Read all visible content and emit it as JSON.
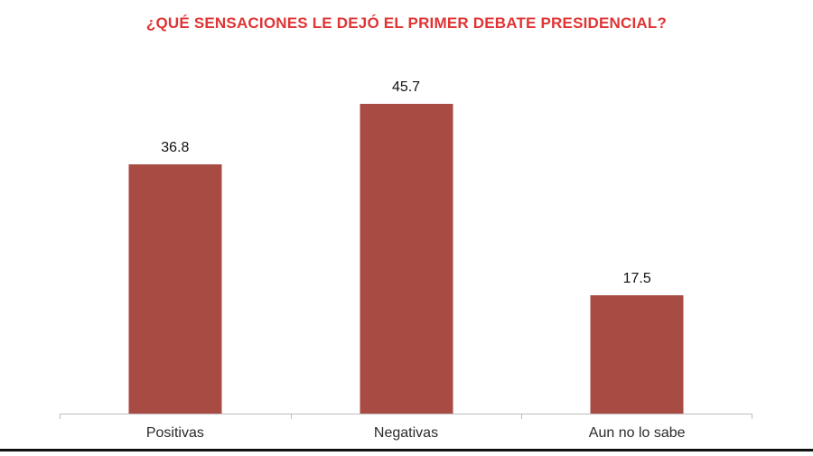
{
  "chart_data": {
    "type": "bar",
    "title": "¿QUÉ SENSACIONES LE DEJÓ EL PRIMER DEBATE PRESIDENCIAL?",
    "categories": [
      "Positivas",
      "Negativas",
      "Aun no lo sabe"
    ],
    "values": [
      36.8,
      45.7,
      17.5
    ],
    "value_labels": [
      "36.8",
      "45.7",
      "17.5"
    ],
    "xlabel": "",
    "ylabel": "",
    "ylim": [
      0,
      51.7
    ],
    "grid": false,
    "legend": false,
    "title_color": "#e03434",
    "bar_color": "#a84b42",
    "value_label_color": "#111111",
    "category_label_color": "#2a2a2a",
    "axis_color": "#bdbdbd"
  },
  "frame": {
    "bottom_line_color": "#101010"
  }
}
